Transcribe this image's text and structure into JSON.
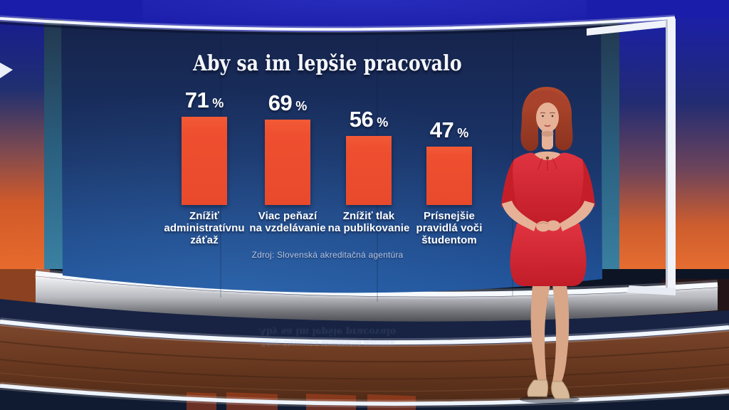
{
  "chart_data": {
    "type": "bar",
    "title": "Aby sa im lepšie pracovalo",
    "unit": "%",
    "categories": [
      "Znížiť administratívnu záťaž",
      "Viac peňazí na vzdelávanie",
      "Znížiť tlak na publikovanie",
      "Prísnejšie pravidlá voči študentom"
    ],
    "values": [
      71,
      69,
      56,
      47
    ],
    "data_labels": [
      "71 %",
      "69 %",
      "56 %",
      "47 %"
    ],
    "source": "Zdroj: Slovenská akreditačná agentúra",
    "ylim": [
      0,
      100
    ],
    "grid": false,
    "legend": "none",
    "bar_color": "#ee4f2f",
    "text_color": "#ffffff",
    "background": "navy studio screen"
  },
  "screen": {
    "title": "Aby sa im lepšie pracovalo",
    "source": "Zdroj: Slovenská akreditačná agentúra",
    "label_lines": [
      [
        "Znížiť",
        "administratívnu",
        "záťaž"
      ],
      [
        "Viac peňazí",
        "na vzdelávanie"
      ],
      [
        "Znížiť tlak",
        "na publikovanie"
      ],
      [
        "Prísnejšie",
        "pravidlá voči",
        "študentom"
      ]
    ]
  },
  "scene": {
    "colors": {
      "wall_blue": "#1a1da9",
      "wall_orange": "#e8702f",
      "screen_navy_top": "#16234a",
      "screen_navy_bottom": "#1f529a",
      "bar_orange": "#ee4f2f",
      "frame_white": "#f0f3f9",
      "floor_wood": "#68381f",
      "floor_navy": "#101a30",
      "dress_red": "#d7232d",
      "hair_auburn": "#a8422c"
    }
  }
}
